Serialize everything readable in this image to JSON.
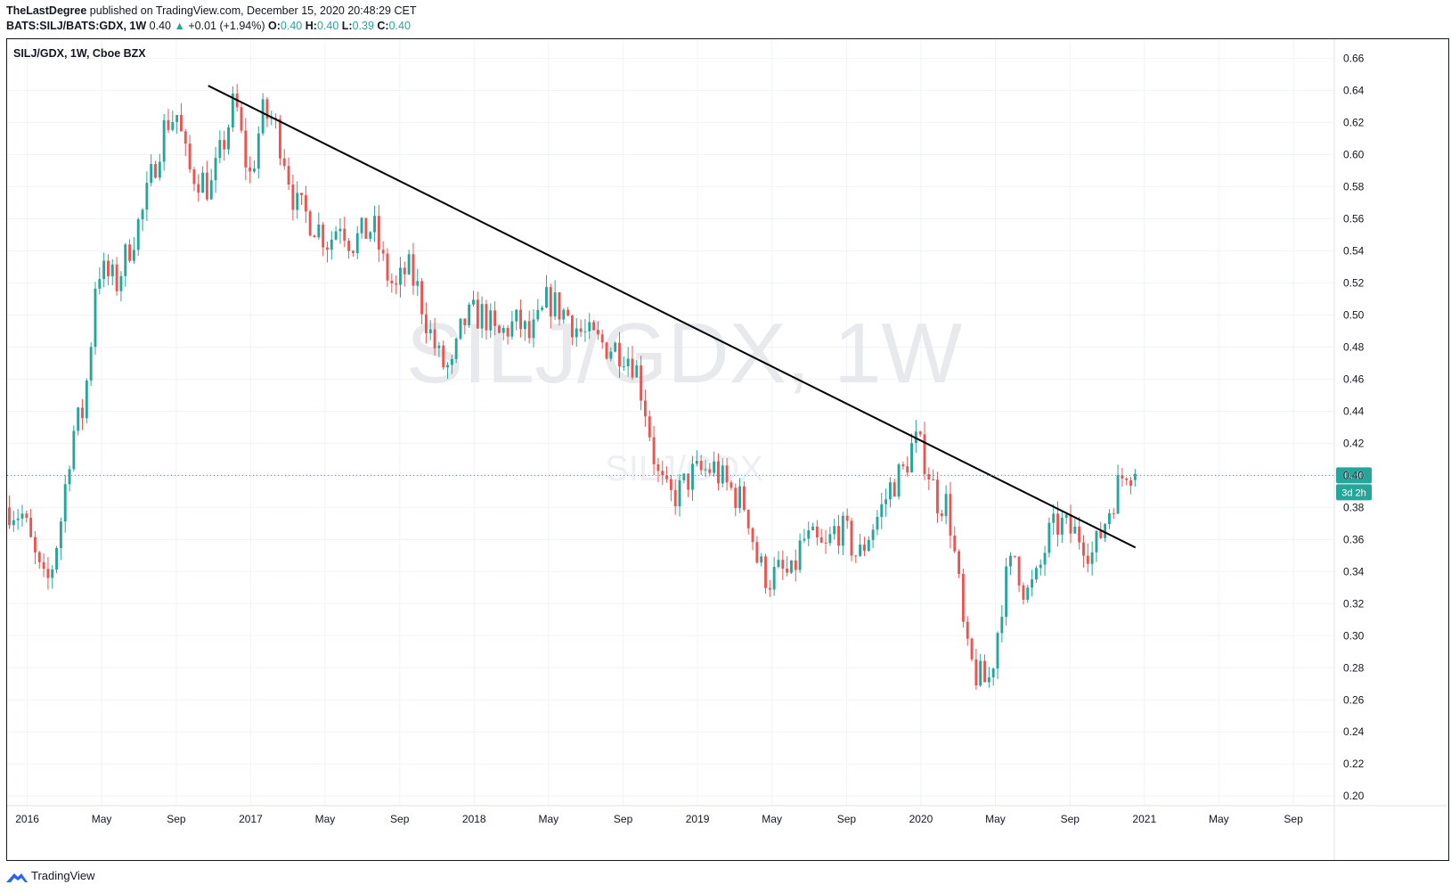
{
  "header": {
    "author": "TheLastDegree",
    "published_text": " published on TradingView.com, December 15, 2020 20:48:29 CET",
    "symbol_line": "BATS:SILJ/BATS:GDX, 1W",
    "last": "0.40",
    "change": "+0.01 (+1.94%)",
    "o_label": "O:",
    "o_val": "0.40",
    "h_label": "H:",
    "h_val": "0.40",
    "l_label": "L:",
    "l_val": "0.39",
    "c_label": "C:",
    "c_val": "0.40"
  },
  "footer": {
    "brand": "TradingView"
  },
  "chart_data": {
    "type": "candlestick",
    "legend": "SILJ/GDX, 1W, Cboe BZX",
    "watermark": "SILJ/GDX, 1W",
    "watermark_sub": "SILJ/GDX",
    "y_ticks": [
      "0.66",
      "0.64",
      "0.62",
      "0.60",
      "0.58",
      "0.56",
      "0.54",
      "0.52",
      "0.50",
      "0.48",
      "0.46",
      "0.44",
      "0.42",
      "0.40",
      "0.38",
      "0.36",
      "0.34",
      "0.32",
      "0.30",
      "0.28",
      "0.26",
      "0.24",
      "0.22",
      "0.20"
    ],
    "ylim": [
      0.194,
      0.672
    ],
    "x_ticks": [
      {
        "label": "2016",
        "t": 2016.0
      },
      {
        "label": "May",
        "t": 2016.333
      },
      {
        "label": "Sep",
        "t": 2016.667
      },
      {
        "label": "2017",
        "t": 2017.0
      },
      {
        "label": "May",
        "t": 2017.333
      },
      {
        "label": "Sep",
        "t": 2017.667
      },
      {
        "label": "2018",
        "t": 2018.0
      },
      {
        "label": "May",
        "t": 2018.333
      },
      {
        "label": "Sep",
        "t": 2018.667
      },
      {
        "label": "2019",
        "t": 2019.0
      },
      {
        "label": "May",
        "t": 2019.333
      },
      {
        "label": "Sep",
        "t": 2019.667
      },
      {
        "label": "2020",
        "t": 2020.0
      },
      {
        "label": "May",
        "t": 2020.333
      },
      {
        "label": "Sep",
        "t": 2020.667
      },
      {
        "label": "2021",
        "t": 2021.0
      },
      {
        "label": "May",
        "t": 2021.333
      },
      {
        "label": "Sep",
        "t": 2021.667
      }
    ],
    "xlim": [
      2015.91,
      2021.85
    ],
    "price_line": 0.4,
    "price_label": "0.40",
    "countdown_label": "3d 2h",
    "trendline": [
      [
        2016.81,
        0.643
      ],
      [
        2020.96,
        0.355
      ]
    ],
    "up_color": "#26a69a",
    "down_color": "#ef5350",
    "anchors": [
      [
        2015.92,
        0.38
      ],
      [
        2015.98,
        0.375
      ],
      [
        2016.02,
        0.355
      ],
      [
        2016.07,
        0.332
      ],
      [
        2016.1,
        0.335
      ],
      [
        2016.15,
        0.372
      ],
      [
        2016.2,
        0.425
      ],
      [
        2016.25,
        0.44
      ],
      [
        2016.28,
        0.475
      ],
      [
        2016.31,
        0.53
      ],
      [
        2016.35,
        0.525
      ],
      [
        2016.4,
        0.52
      ],
      [
        2016.45,
        0.54
      ],
      [
        2016.52,
        0.565
      ],
      [
        2016.58,
        0.6
      ],
      [
        2016.62,
        0.62
      ],
      [
        2016.67,
        0.625
      ],
      [
        2016.72,
        0.59
      ],
      [
        2016.78,
        0.585
      ],
      [
        2016.82,
        0.578
      ],
      [
        2016.88,
        0.608
      ],
      [
        2016.93,
        0.635
      ],
      [
        2016.97,
        0.6
      ],
      [
        2017.0,
        0.585
      ],
      [
        2017.05,
        0.625
      ],
      [
        2017.1,
        0.622
      ],
      [
        2017.15,
        0.6
      ],
      [
        2017.2,
        0.568
      ],
      [
        2017.25,
        0.562
      ],
      [
        2017.3,
        0.555
      ],
      [
        2017.35,
        0.545
      ],
      [
        2017.4,
        0.56
      ],
      [
        2017.45,
        0.545
      ],
      [
        2017.5,
        0.55
      ],
      [
        2017.55,
        0.555
      ],
      [
        2017.6,
        0.528
      ],
      [
        2017.65,
        0.515
      ],
      [
        2017.7,
        0.53
      ],
      [
        2017.75,
        0.515
      ],
      [
        2017.8,
        0.49
      ],
      [
        2017.85,
        0.47
      ],
      [
        2017.9,
        0.465
      ],
      [
        2017.95,
        0.495
      ],
      [
        2018.0,
        0.5
      ],
      [
        2018.05,
        0.5
      ],
      [
        2018.1,
        0.485
      ],
      [
        2018.15,
        0.492
      ],
      [
        2018.2,
        0.495
      ],
      [
        2018.25,
        0.485
      ],
      [
        2018.3,
        0.498
      ],
      [
        2018.33,
        0.51
      ],
      [
        2018.37,
        0.505
      ],
      [
        2018.42,
        0.5
      ],
      [
        2018.47,
        0.49
      ],
      [
        2018.52,
        0.485
      ],
      [
        2018.57,
        0.482
      ],
      [
        2018.62,
        0.48
      ],
      [
        2018.67,
        0.478
      ],
      [
        2018.72,
        0.47
      ],
      [
        2018.77,
        0.44
      ],
      [
        2018.82,
        0.4
      ],
      [
        2018.87,
        0.385
      ],
      [
        2018.92,
        0.39
      ],
      [
        2018.97,
        0.4
      ],
      [
        2019.02,
        0.402
      ],
      [
        2019.07,
        0.405
      ],
      [
        2019.12,
        0.395
      ],
      [
        2019.17,
        0.388
      ],
      [
        2019.22,
        0.38
      ],
      [
        2019.27,
        0.345
      ],
      [
        2019.32,
        0.335
      ],
      [
        2019.37,
        0.34
      ],
      [
        2019.42,
        0.336
      ],
      [
        2019.47,
        0.36
      ],
      [
        2019.52,
        0.358
      ],
      [
        2019.57,
        0.352
      ],
      [
        2019.62,
        0.368
      ],
      [
        2019.67,
        0.362
      ],
      [
        2019.72,
        0.348
      ],
      [
        2019.77,
        0.365
      ],
      [
        2019.82,
        0.378
      ],
      [
        2019.87,
        0.395
      ],
      [
        2019.92,
        0.402
      ],
      [
        2019.97,
        0.422
      ],
      [
        2020.02,
        0.41
      ],
      [
        2020.07,
        0.385
      ],
      [
        2020.12,
        0.382
      ],
      [
        2020.17,
        0.33
      ],
      [
        2020.2,
        0.29
      ],
      [
        2020.25,
        0.275
      ],
      [
        2020.3,
        0.27
      ],
      [
        2020.33,
        0.29
      ],
      [
        2020.37,
        0.33
      ],
      [
        2020.42,
        0.35
      ],
      [
        2020.47,
        0.325
      ],
      [
        2020.52,
        0.335
      ],
      [
        2020.57,
        0.362
      ],
      [
        2020.62,
        0.37
      ],
      [
        2020.67,
        0.365
      ],
      [
        2020.72,
        0.362
      ],
      [
        2020.77,
        0.35
      ],
      [
        2020.82,
        0.37
      ],
      [
        2020.87,
        0.39
      ],
      [
        2020.92,
        0.405
      ],
      [
        2020.96,
        0.402
      ]
    ]
  }
}
